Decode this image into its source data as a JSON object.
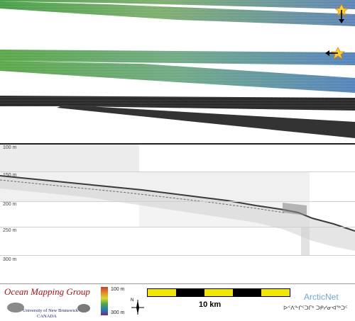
{
  "profile": {
    "depth_labels": [
      "100 m",
      "150 m",
      "200 m",
      "250 m",
      "300 m"
    ]
  },
  "footer": {
    "omg_title": "Ocean Mapping Group",
    "unb_line1": "University of New Brunswick",
    "unb_line2": "CANADA",
    "colorbar_top": "100 m",
    "colorbar_bottom": "300 m",
    "north_label": "N",
    "scale_label": "10 km",
    "arctic_title": "ArcticNet",
    "arctic_subtitle": "ᐅᑉᐱᖕᒋᑦᑐᒥᒃ ᑐᑭᓯᓂᐊᖅᑐᑦ"
  },
  "colors": {
    "scale_yellow": "#f2e600",
    "scale_black": "#000000",
    "marker_yellow": "#ffd21e"
  }
}
